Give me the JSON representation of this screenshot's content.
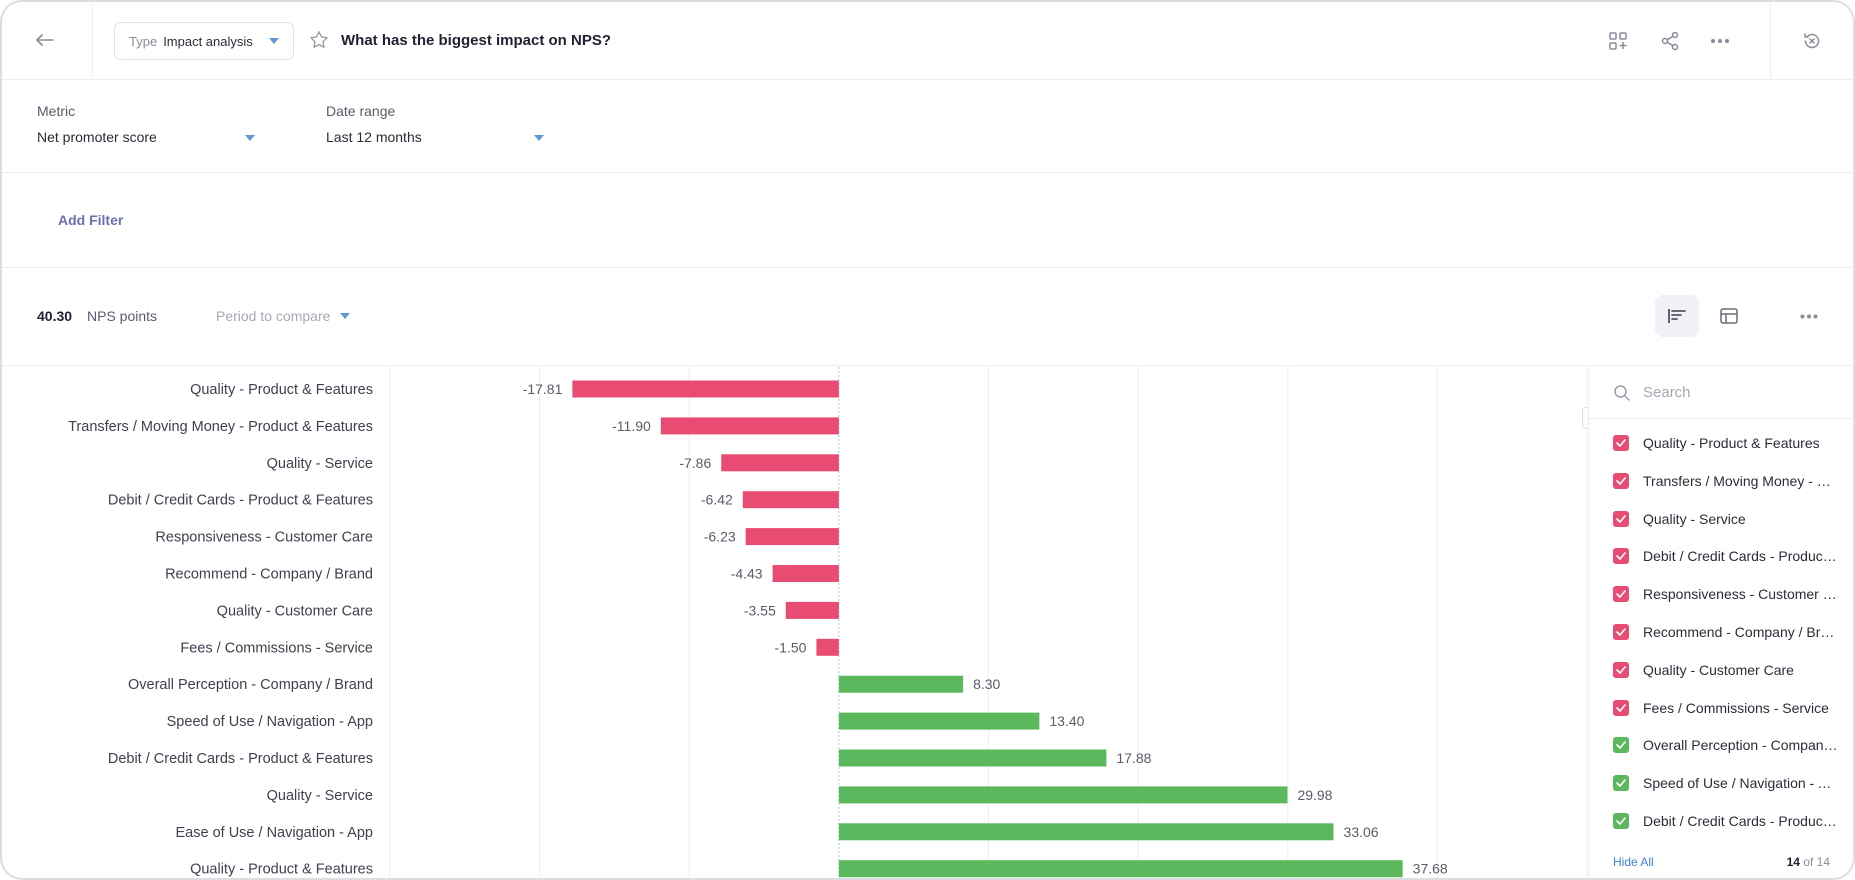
{
  "header": {
    "type_label": "Type",
    "type_value": "Impact analysis",
    "title": "What has the biggest impact on NPS?"
  },
  "filters": {
    "metric_label": "Metric",
    "metric_value": "Net promoter score",
    "date_label": "Date range",
    "date_value": "Last 12 months",
    "add_filter": "Add Filter"
  },
  "summary": {
    "value": "40.30",
    "unit": "NPS points",
    "period_compare": "Period to compare"
  },
  "colors": {
    "negative": "#e84c72",
    "positive": "#5cb85c",
    "accent": "#3d7fd4"
  },
  "chart_data": {
    "type": "bar",
    "orientation": "horizontal",
    "categories": [
      "Quality - Product & Features",
      "Transfers / Moving Money - Product & Features",
      "Quality - Service",
      "Debit / Credit Cards - Product & Features",
      "Responsiveness - Customer Care",
      "Recommend - Company / Brand",
      "Quality - Customer Care",
      "Fees / Commissions - Service",
      "Overall Perception - Company / Brand",
      "Speed of Use / Navigation - App",
      "Debit / Credit Cards - Product & Features",
      "Quality - Service",
      "Ease of Use / Navigation - App",
      "Quality - Product & Features"
    ],
    "values": [
      -17.81,
      -11.9,
      -7.86,
      -6.42,
      -6.23,
      -4.43,
      -3.55,
      -1.5,
      8.3,
      13.4,
      17.88,
      29.98,
      33.06,
      37.68
    ],
    "labels": [
      "-17.81",
      "-11.90",
      "-7.86",
      "-6.42",
      "-6.23",
      "-4.43",
      "-3.55",
      "-1.50",
      "8.30",
      "13.40",
      "17.88",
      "29.98",
      "33.06",
      "37.68"
    ],
    "xlim": [
      -30,
      50
    ],
    "grid": true,
    "legend": "right"
  },
  "legend": {
    "search_placeholder": "Search",
    "items": [
      "Quality - Product & Features",
      "Transfers / Moving Money - Product & Features",
      "Quality - Service",
      "Debit / Credit Cards - Product & Features",
      "Responsiveness - Customer Care",
      "Recommend - Company / Brand",
      "Quality - Customer Care",
      "Fees / Commissions - Service",
      "Overall Perception - Company / Brand",
      "Speed of Use / Navigation - App",
      "Debit / Credit Cards - Product & Features"
    ],
    "item_signs": [
      "negative",
      "negative",
      "negative",
      "negative",
      "negative",
      "negative",
      "negative",
      "negative",
      "positive",
      "positive",
      "positive"
    ],
    "hide_all": "Hide All",
    "count_shown": "14",
    "count_total": "of 14"
  }
}
